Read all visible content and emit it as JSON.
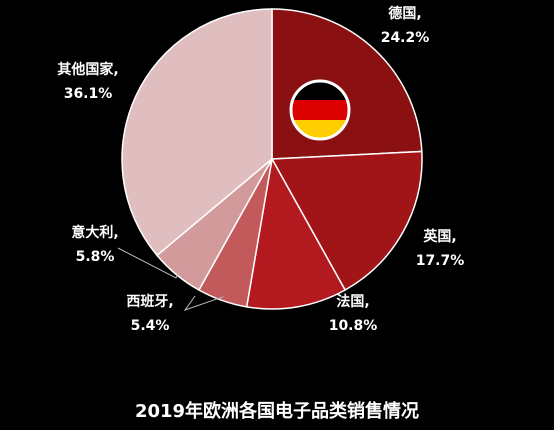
{
  "chart_data": {
    "type": "pie",
    "title": "2019年欧洲各国电子品类销售情况",
    "categories": [
      "德国,",
      "英国,",
      "法国,",
      "西班牙,",
      "意大利,",
      "其他国家,"
    ],
    "values": [
      24.2,
      17.7,
      10.8,
      5.4,
      5.8,
      36.1
    ],
    "value_labels": [
      "24.2%",
      "17.7%",
      "10.8%",
      "5.4%",
      "5.8%",
      "36.1%"
    ],
    "colors": [
      "#8b1012",
      "#a11519",
      "#b21a20",
      "#c25a5b",
      "#d39a9b",
      "#e0bdbe"
    ]
  }
}
